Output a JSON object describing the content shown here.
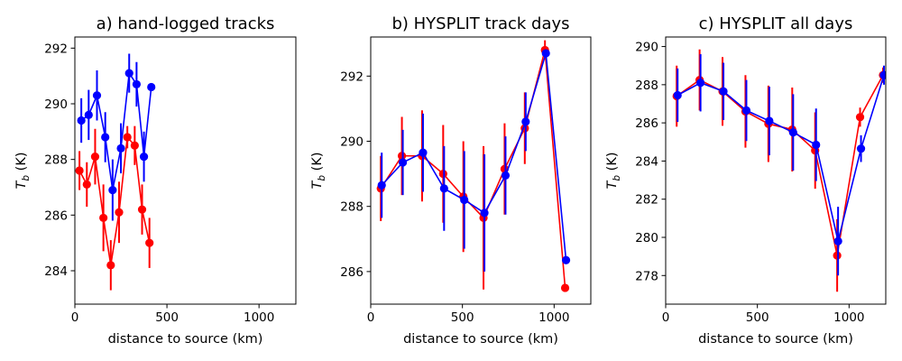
{
  "colors": {
    "red_series": "#ff0000",
    "blue_series": "#0000ff",
    "axis": "#000000"
  },
  "chart_data": [
    {
      "type": "line",
      "title": "a) hand-logged tracks",
      "xlabel": "distance to source (km)",
      "ylabel": "T_b (K)",
      "ylabel_main": "T",
      "ylabel_sub": "b",
      "ylabel_unit": " (K)",
      "xlim": [
        0,
        1200
      ],
      "ylim": [
        282.8,
        292.4
      ],
      "xticks": [
        0,
        500,
        1000
      ],
      "xtick_labels": [
        "0",
        "500",
        "1000"
      ],
      "yticks": [
        284,
        286,
        288,
        290,
        292
      ],
      "ytick_labels": [
        "284",
        "286",
        "288",
        "290",
        "292"
      ],
      "series": [
        {
          "name": "red",
          "x": [
            25,
            65,
            110,
            155,
            195,
            240,
            285,
            325,
            365,
            405
          ],
          "y": [
            287.6,
            287.1,
            288.1,
            285.9,
            284.2,
            286.1,
            288.8,
            288.5,
            286.2,
            285.0
          ],
          "err": [
            0.7,
            0.8,
            1.0,
            1.2,
            0.9,
            1.1,
            0.4,
            0.7,
            0.9,
            0.9
          ]
        },
        {
          "name": "blue",
          "x": [
            35,
            75,
            120,
            165,
            205,
            250,
            295,
            335,
            375,
            415
          ],
          "y": [
            289.4,
            289.6,
            290.3,
            288.8,
            286.9,
            288.4,
            291.1,
            290.7,
            288.1,
            290.6
          ],
          "err": [
            0.8,
            0.9,
            0.9,
            0.9,
            1.1,
            0.9,
            0.7,
            0.8,
            0.9,
            0.0
          ]
        }
      ]
    },
    {
      "type": "line",
      "title": "b) HYSPLIT track days",
      "xlabel": "distance to source (km)",
      "ylabel": "T_b (K)",
      "ylabel_main": "T",
      "ylabel_sub": "b",
      "ylabel_unit": " (K)",
      "xlim": [
        0,
        1200
      ],
      "ylim": [
        285.0,
        293.2
      ],
      "xticks": [
        0,
        500,
        1000
      ],
      "xtick_labels": [
        "0",
        "500",
        "1000"
      ],
      "yticks": [
        286,
        288,
        290,
        292
      ],
      "ytick_labels": [
        "286",
        "288",
        "290",
        "292"
      ],
      "series": [
        {
          "name": "red",
          "x": [
            55,
            170,
            280,
            395,
            505,
            615,
            730,
            840,
            950,
            1060
          ],
          "y": [
            288.55,
            289.55,
            289.55,
            289.0,
            288.3,
            287.65,
            289.15,
            290.4,
            292.8,
            285.5
          ],
          "err": [
            1.0,
            1.2,
            1.4,
            1.5,
            1.7,
            2.2,
            1.4,
            1.1,
            0.3,
            0.0
          ]
        },
        {
          "name": "blue",
          "x": [
            60,
            175,
            285,
            400,
            510,
            620,
            735,
            845,
            955,
            1065
          ],
          "y": [
            288.65,
            289.35,
            289.65,
            288.55,
            288.2,
            287.8,
            288.95,
            290.6,
            292.7,
            286.35
          ],
          "err": [
            1.0,
            1.0,
            1.2,
            1.3,
            1.5,
            1.8,
            1.2,
            0.9,
            0.1,
            0.0
          ]
        }
      ]
    },
    {
      "type": "line",
      "title": "c) HYSPLIT all days",
      "xlabel": "distance to source (km)",
      "ylabel": "T_b (K)",
      "ylabel_main": "T",
      "ylabel_sub": "b",
      "ylabel_unit": " (K)",
      "xlim": [
        0,
        1200
      ],
      "ylim": [
        276.5,
        290.5
      ],
      "xticks": [
        0,
        500,
        1000
      ],
      "xtick_labels": [
        "0",
        "500",
        "1000"
      ],
      "yticks": [
        278,
        280,
        282,
        284,
        286,
        288,
        290
      ],
      "ytick_labels": [
        "278",
        "280",
        "282",
        "284",
        "286",
        "288",
        "290"
      ],
      "series": [
        {
          "name": "red",
          "x": [
            60,
            185,
            310,
            435,
            560,
            690,
            815,
            935,
            1060,
            1185
          ],
          "y": [
            287.4,
            288.25,
            287.65,
            286.6,
            285.95,
            285.65,
            284.55,
            279.05,
            286.3,
            288.5
          ],
          "err": [
            1.6,
            1.6,
            1.8,
            1.9,
            2.0,
            2.2,
            2.0,
            1.9,
            0.5,
            0.4
          ]
        },
        {
          "name": "blue",
          "x": [
            65,
            190,
            315,
            440,
            565,
            695,
            820,
            940,
            1065,
            1190
          ],
          "y": [
            287.45,
            288.1,
            287.65,
            286.65,
            286.1,
            285.5,
            284.85,
            279.8,
            284.65,
            288.5
          ],
          "err": [
            1.4,
            1.5,
            1.5,
            1.6,
            1.8,
            2.0,
            1.9,
            1.8,
            0.7,
            0.5
          ]
        }
      ]
    }
  ]
}
